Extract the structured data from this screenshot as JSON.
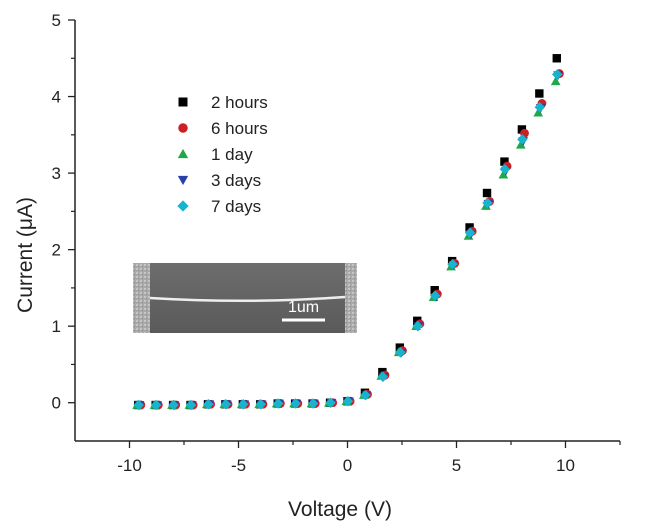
{
  "chart_data": {
    "type": "scatter",
    "xlabel": "Voltage (V)",
    "ylabel": "Current (μA)",
    "xlim": [
      -12.5,
      12.5
    ],
    "ylim": [
      -0.5,
      5
    ],
    "xticks": [
      -10,
      -5,
      0,
      5,
      10
    ],
    "yticks": [
      0,
      1,
      2,
      3,
      4,
      5
    ],
    "grid": false,
    "legend_position": "upper-left",
    "x": [
      -9.6,
      -8.8,
      -8.0,
      -7.2,
      -6.4,
      -5.6,
      -4.8,
      -4.0,
      -3.2,
      -2.4,
      -1.6,
      -0.8,
      0.0,
      0.8,
      1.6,
      2.4,
      3.2,
      4.0,
      4.8,
      5.6,
      6.4,
      7.2,
      8.0,
      8.8,
      9.6
    ],
    "series": [
      {
        "name": "2 hours",
        "marker": "square",
        "color": "#000000",
        "values": [
          -0.03,
          -0.03,
          -0.03,
          -0.03,
          -0.02,
          -0.02,
          -0.02,
          -0.02,
          -0.01,
          -0.01,
          -0.01,
          0.0,
          0.02,
          0.13,
          0.4,
          0.72,
          1.07,
          1.47,
          1.85,
          2.29,
          2.74,
          3.15,
          3.57,
          4.04,
          4.5
        ]
      },
      {
        "name": "6 hours",
        "marker": "circle",
        "color": "#cc1f26",
        "values": [
          -0.03,
          -0.03,
          -0.03,
          -0.03,
          -0.02,
          -0.02,
          -0.02,
          -0.02,
          -0.01,
          -0.01,
          -0.01,
          0.0,
          0.02,
          0.11,
          0.36,
          0.68,
          1.03,
          1.42,
          1.82,
          2.24,
          2.63,
          3.09,
          3.52,
          3.91,
          4.3
        ]
      },
      {
        "name": "1 day",
        "marker": "triangle-up",
        "color": "#1fa84a",
        "values": [
          -0.03,
          -0.03,
          -0.03,
          -0.03,
          -0.02,
          -0.02,
          -0.02,
          -0.02,
          -0.01,
          -0.01,
          -0.01,
          0.0,
          0.02,
          0.1,
          0.35,
          0.66,
          1.0,
          1.38,
          1.78,
          2.18,
          2.57,
          2.98,
          3.37,
          3.79,
          4.2
        ]
      },
      {
        "name": "3 days",
        "marker": "triangle-down",
        "color": "#2a3fa8",
        "values": [
          -0.03,
          -0.03,
          -0.03,
          -0.03,
          -0.02,
          -0.02,
          -0.02,
          -0.02,
          -0.01,
          -0.01,
          -0.01,
          0.0,
          0.02,
          0.1,
          0.34,
          0.65,
          1.0,
          1.38,
          1.8,
          2.2,
          2.6,
          3.03,
          3.42,
          3.85,
          4.28
        ]
      },
      {
        "name": "7 days",
        "marker": "diamond",
        "color": "#18b3cc",
        "values": [
          -0.03,
          -0.03,
          -0.03,
          -0.03,
          -0.02,
          -0.02,
          -0.02,
          -0.02,
          -0.01,
          -0.01,
          -0.01,
          0.0,
          0.02,
          0.1,
          0.34,
          0.66,
          1.0,
          1.4,
          1.81,
          2.22,
          2.61,
          3.05,
          3.44,
          3.86,
          4.29
        ]
      }
    ],
    "inset": {
      "scale_bar_label": "1um"
    }
  }
}
